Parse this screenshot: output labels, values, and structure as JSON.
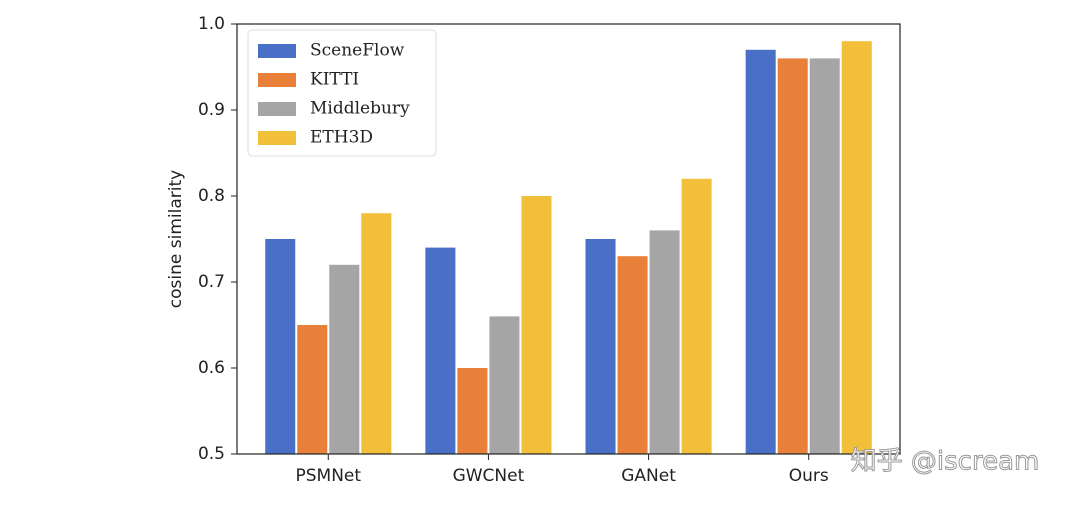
{
  "chart_data": {
    "type": "bar",
    "ylabel": "cosine similarity",
    "categories": [
      "PSMNet",
      "GWCNet",
      "GANet",
      "Ours"
    ],
    "series": [
      {
        "name": "SceneFlow",
        "color": "#4a6fc7",
        "values": [
          0.75,
          0.74,
          0.75,
          0.97
        ]
      },
      {
        "name": "KITTI",
        "color": "#e8803a",
        "values": [
          0.65,
          0.6,
          0.73,
          0.96
        ]
      },
      {
        "name": "Middlebury",
        "color": "#a5a5a5",
        "values": [
          0.72,
          0.66,
          0.76,
          0.96
        ]
      },
      {
        "name": "ETH3D",
        "color": "#f2c038",
        "values": [
          0.78,
          0.8,
          0.82,
          0.98
        ]
      }
    ],
    "ylim": [
      0.5,
      1.0
    ],
    "yticks": [
      0.5,
      0.6,
      0.7,
      0.8,
      0.9,
      {
        "value": 1.0,
        "label": "1.0"
      }
    ],
    "legend": "upper left",
    "watermark": "知乎 @iscream"
  }
}
